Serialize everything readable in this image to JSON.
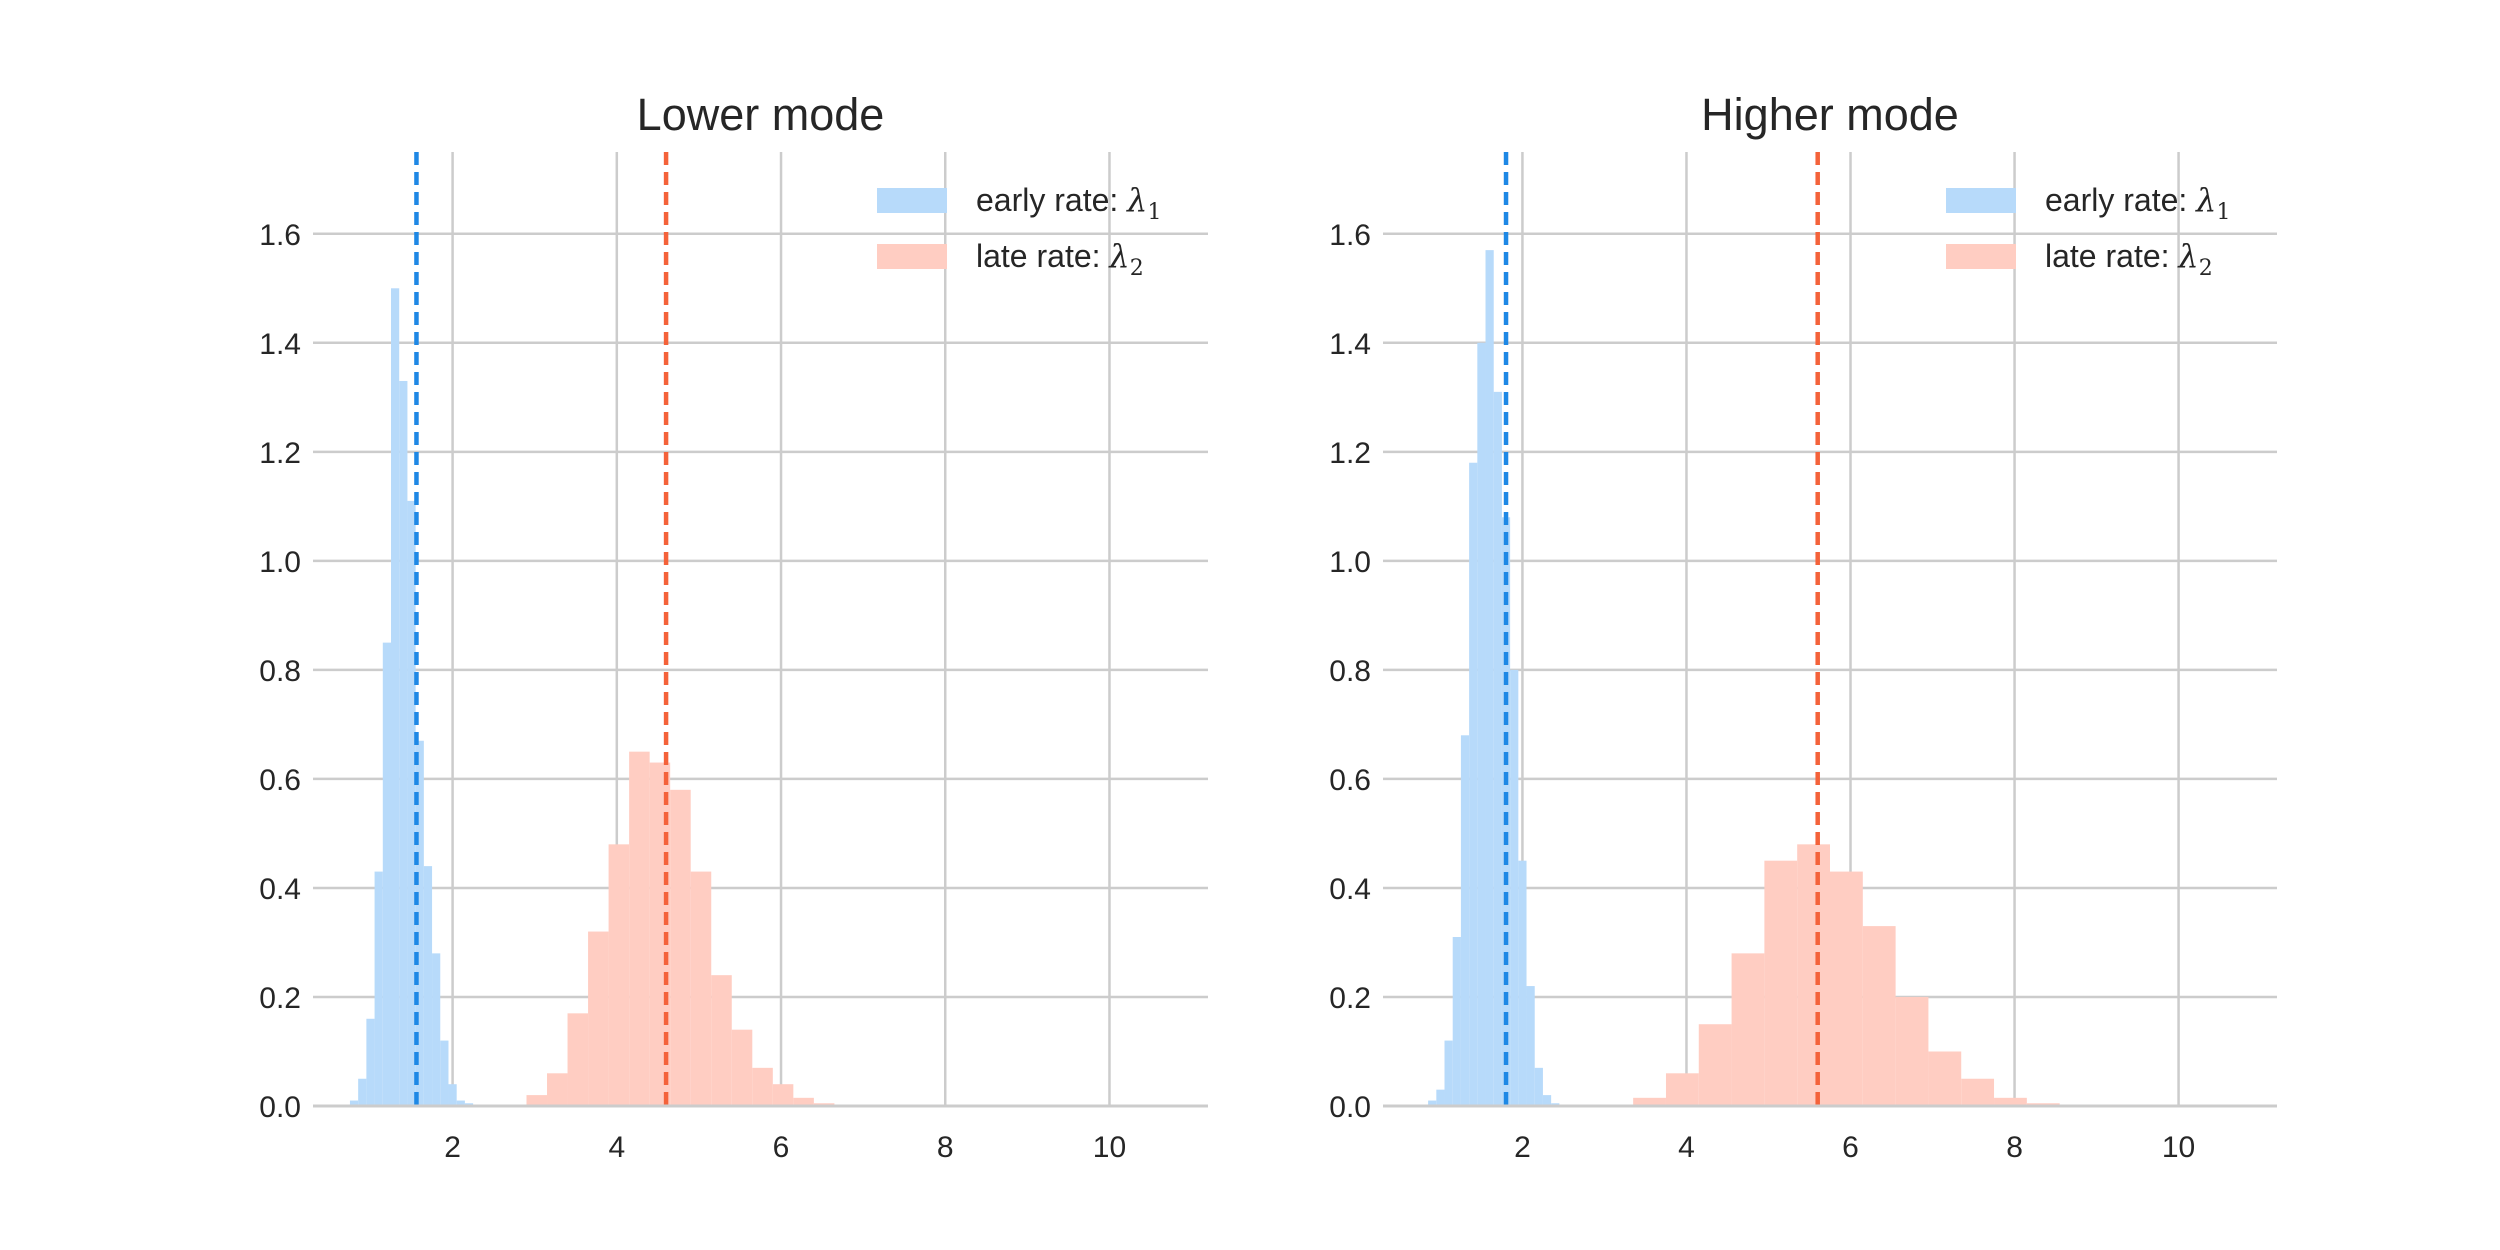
{
  "chart_data": [
    {
      "type": "histogram",
      "title": "Lower mode",
      "xlim": [
        0.3,
        11.2
      ],
      "ylim": [
        0,
        1.75
      ],
      "xticks": [
        2,
        4,
        6,
        8,
        10
      ],
      "yticks": [
        0.0,
        0.2,
        0.4,
        0.6,
        0.8,
        1.0,
        1.2,
        1.4,
        1.6
      ],
      "grid": true,
      "legend_position": "upper right",
      "series": [
        {
          "name": "early rate: λ",
          "name_subscript": "1",
          "color": "#b7dafa",
          "line_color": "#1e88e5",
          "bin_start": 0.75,
          "bin_width": 0.1,
          "values": [
            0.01,
            0.05,
            0.16,
            0.43,
            0.85,
            1.5,
            1.33,
            1.11,
            0.67,
            0.44,
            0.28,
            0.12,
            0.04,
            0.01,
            0.005
          ],
          "mean": 1.56
        },
        {
          "name": "late rate: λ",
          "name_subscript": "2",
          "color": "#ffcdc2",
          "line_color": "#f4623a",
          "bin_start": 2.9,
          "bin_width": 0.25,
          "values": [
            0.02,
            0.06,
            0.17,
            0.32,
            0.48,
            0.65,
            0.63,
            0.58,
            0.43,
            0.24,
            0.14,
            0.07,
            0.04,
            0.015,
            0.005
          ],
          "mean": 4.6
        }
      ]
    },
    {
      "type": "histogram",
      "title": "Higher mode",
      "xlim": [
        0.3,
        11.2
      ],
      "ylim": [
        0,
        1.75
      ],
      "xticks": [
        2,
        4,
        6,
        8,
        10
      ],
      "yticks": [
        0.0,
        0.2,
        0.4,
        0.6,
        0.8,
        1.0,
        1.2,
        1.4,
        1.6
      ],
      "grid": true,
      "legend_position": "upper right",
      "series": [
        {
          "name": "early rate: λ",
          "name_subscript": "1",
          "color": "#b7dafa",
          "line_color": "#1e88e5",
          "bin_start": 0.85,
          "bin_width": 0.1,
          "values": [
            0.01,
            0.03,
            0.12,
            0.31,
            0.68,
            1.18,
            1.4,
            1.57,
            1.31,
            1.08,
            0.8,
            0.45,
            0.22,
            0.07,
            0.02,
            0.005
          ],
          "mean": 1.8
        },
        {
          "name": "late rate: λ",
          "name_subscript": "2",
          "color": "#ffcdc2",
          "line_color": "#f4623a",
          "bin_start": 3.35,
          "bin_width": 0.4,
          "values": [
            0.015,
            0.06,
            0.15,
            0.28,
            0.45,
            0.48,
            0.43,
            0.33,
            0.2,
            0.1,
            0.05,
            0.015,
            0.005
          ],
          "mean": 5.6
        }
      ]
    }
  ]
}
